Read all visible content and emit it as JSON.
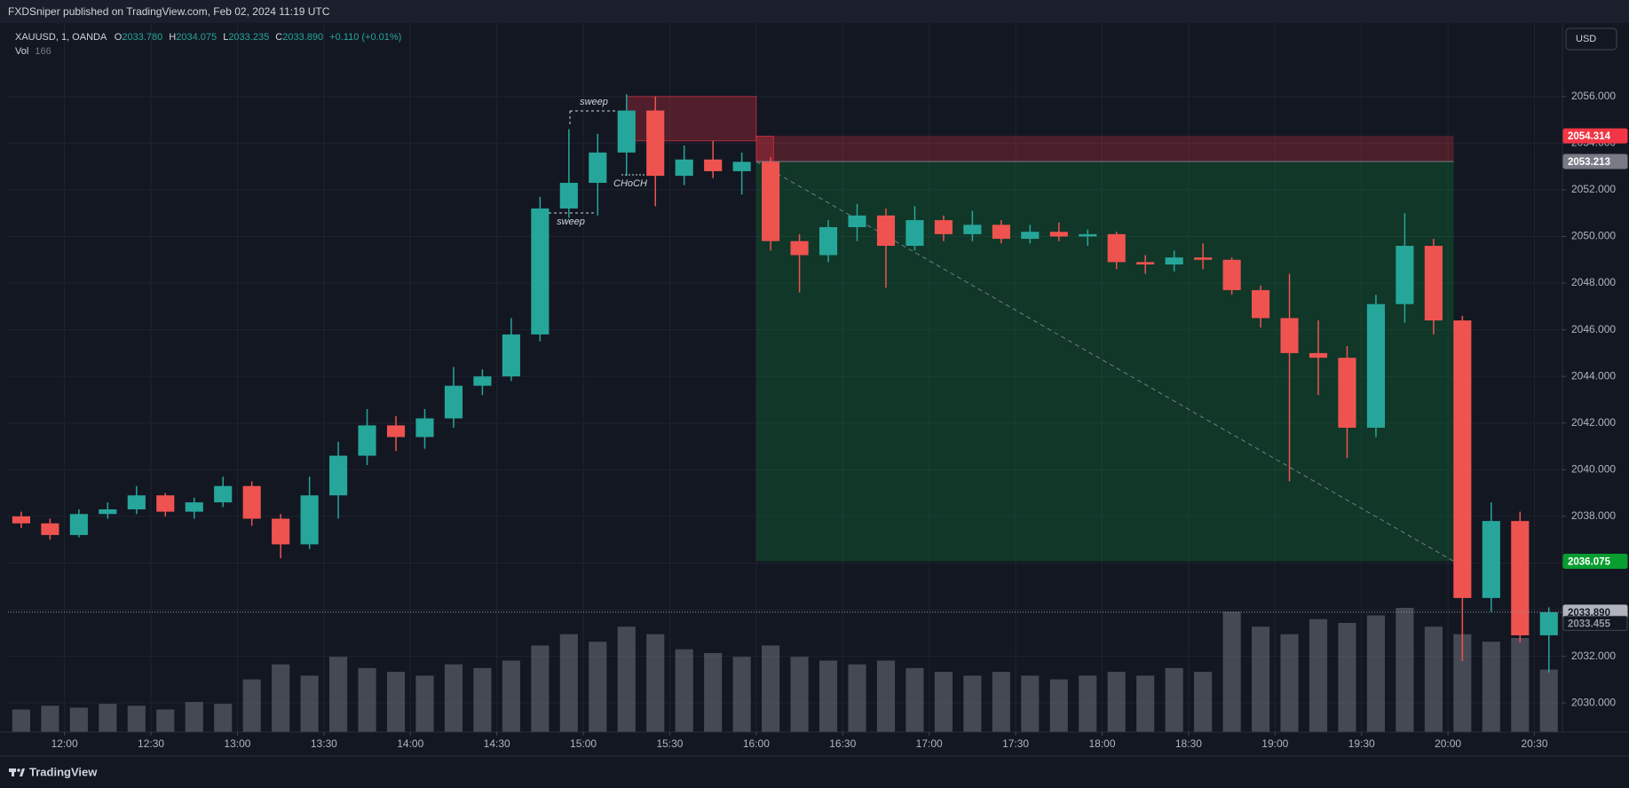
{
  "header": {
    "published": "FXDSniper published on TradingView.com, Feb 02, 2024 11:19 UTC",
    "currency": "USD"
  },
  "legend": {
    "symbol": "XAUUSD, 1, OANDA",
    "ohlc": [
      {
        "key": "O",
        "value": "2033.780"
      },
      {
        "key": "H",
        "value": "2034.075"
      },
      {
        "key": "L",
        "value": "2033.235"
      },
      {
        "key": "C",
        "value": "2033.890"
      }
    ],
    "change": "+0.110 (+0.01%)",
    "volume_label": "Vol"
  },
  "chart_data": {
    "type": "candlestick",
    "x": [
      705,
      715,
      725,
      735,
      745,
      755,
      765,
      775,
      785,
      795,
      805,
      815,
      825,
      835,
      845,
      855,
      865,
      875,
      885,
      895,
      905,
      915,
      925,
      935,
      945,
      955,
      965,
      975,
      985,
      995,
      1005,
      1015,
      1025,
      1035,
      1045,
      1055,
      1065,
      1075,
      1085,
      1095,
      1105,
      1115,
      1125,
      1135,
      1145,
      1155,
      1165,
      1175,
      1185,
      1195,
      1205,
      1215,
      1225,
      1235
    ],
    "open": [
      2038.0,
      2037.7,
      2037.2,
      2038.1,
      2038.3,
      2038.9,
      2038.2,
      2038.6,
      2039.3,
      2037.9,
      2036.8,
      2038.9,
      2040.6,
      2041.9,
      2041.4,
      2042.2,
      2043.6,
      2044.0,
      2045.8,
      2051.2,
      2052.3,
      2053.6,
      2055.4,
      2052.6,
      2053.3,
      2052.8,
      2053.2,
      2049.8,
      2049.2,
      2050.4,
      2050.9,
      2049.6,
      2050.7,
      2050.1,
      2050.5,
      2049.9,
      2050.2,
      2050.0,
      2050.1,
      2048.9,
      2048.8,
      2049.1,
      2049.0,
      2047.7,
      2046.5,
      2045.0,
      2044.8,
      2041.8,
      2047.1,
      2049.6,
      2046.4,
      2034.5,
      2037.8,
      2032.9
    ],
    "high": [
      2038.2,
      2037.9,
      2038.3,
      2038.6,
      2039.3,
      2039.0,
      2038.8,
      2039.7,
      2039.5,
      2038.1,
      2039.7,
      2041.2,
      2042.6,
      2042.3,
      2042.6,
      2044.4,
      2044.3,
      2046.5,
      2051.7,
      2054.6,
      2054.4,
      2056.1,
      2056.0,
      2053.9,
      2054.1,
      2053.6,
      2053.4,
      2050.1,
      2050.7,
      2051.4,
      2051.2,
      2051.3,
      2050.9,
      2051.1,
      2050.7,
      2050.5,
      2050.6,
      2050.3,
      2050.2,
      2049.2,
      2049.4,
      2049.7,
      2049.1,
      2047.9,
      2048.4,
      2046.4,
      2045.3,
      2047.5,
      2051.0,
      2049.9,
      2046.6,
      2038.6,
      2038.2,
      2034.1
    ],
    "low": [
      2037.5,
      2037.0,
      2037.1,
      2037.9,
      2038.1,
      2038.0,
      2037.9,
      2038.4,
      2037.6,
      2036.2,
      2036.6,
      2037.9,
      2040.2,
      2040.8,
      2040.9,
      2041.8,
      2043.2,
      2043.8,
      2045.5,
      2050.8,
      2050.9,
      2052.6,
      2051.3,
      2052.2,
      2052.5,
      2051.8,
      2049.4,
      2047.6,
      2048.9,
      2049.8,
      2047.8,
      2049.4,
      2049.8,
      2049.8,
      2049.7,
      2049.7,
      2049.8,
      2049.6,
      2048.6,
      2048.4,
      2048.5,
      2048.6,
      2047.5,
      2046.1,
      2039.5,
      2043.2,
      2040.5,
      2041.4,
      2046.3,
      2045.8,
      2031.8,
      2033.9,
      2032.6,
      2031.3
    ],
    "close": [
      2037.7,
      2037.2,
      2038.1,
      2038.3,
      2038.9,
      2038.2,
      2038.6,
      2039.3,
      2037.9,
      2036.8,
      2038.9,
      2040.6,
      2041.9,
      2041.4,
      2042.2,
      2043.6,
      2044.0,
      2045.8,
      2051.2,
      2052.3,
      2053.6,
      2055.4,
      2052.6,
      2053.3,
      2052.8,
      2053.2,
      2049.8,
      2049.2,
      2050.4,
      2050.9,
      2049.6,
      2050.7,
      2050.1,
      2050.5,
      2049.9,
      2050.2,
      2050.0,
      2050.1,
      2048.9,
      2048.8,
      2049.1,
      2049.0,
      2047.7,
      2046.5,
      2045.0,
      2044.8,
      2041.8,
      2047.1,
      2049.6,
      2046.4,
      2034.5,
      2037.8,
      2032.9,
      2033.89
    ],
    "volume": [
      60,
      70,
      65,
      75,
      70,
      60,
      80,
      75,
      140,
      180,
      150,
      200,
      170,
      160,
      150,
      180,
      170,
      190,
      230,
      260,
      240,
      280,
      260,
      220,
      210,
      200,
      230,
      200,
      190,
      180,
      190,
      170,
      160,
      150,
      160,
      150,
      140,
      150,
      160,
      150,
      170,
      160,
      320,
      280,
      260,
      300,
      290,
      310,
      330,
      280,
      260,
      240,
      250,
      166
    ],
    "up_color": "#26a69a",
    "down_color": "#ef5350",
    "volume_color": "#787b86",
    "xlim": [
      700.4,
      1239.7
    ],
    "xticks": [
      {
        "value": 720,
        "label": "12:00"
      },
      {
        "value": 750,
        "label": "12:30"
      },
      {
        "value": 780,
        "label": "13:00"
      },
      {
        "value": 810,
        "label": "13:30"
      },
      {
        "value": 840,
        "label": "14:00"
      },
      {
        "value": 870,
        "label": "14:30"
      },
      {
        "value": 900,
        "label": "15:00"
      },
      {
        "value": 930,
        "label": "15:30"
      },
      {
        "value": 960,
        "label": "16:00"
      },
      {
        "value": 990,
        "label": "16:30"
      },
      {
        "value": 1020,
        "label": "17:00"
      },
      {
        "value": 1050,
        "label": "17:30"
      },
      {
        "value": 1080,
        "label": "18:00"
      },
      {
        "value": 1110,
        "label": "18:30"
      },
      {
        "value": 1140,
        "label": "19:00"
      },
      {
        "value": 1170,
        "label": "19:30"
      },
      {
        "value": 1200,
        "label": "20:00"
      },
      {
        "value": 1230,
        "label": "20:30"
      }
    ],
    "ylim": [
      2028.75,
      2059.15
    ],
    "yticks": [
      {
        "value": 2030,
        "label": "2030.000"
      },
      {
        "value": 2032,
        "label": "2032.000"
      },
      {
        "value": 2034,
        "label": "2034.000"
      },
      {
        "value": 2036,
        "label": "2036.000"
      },
      {
        "value": 2038,
        "label": "2038.000"
      },
      {
        "value": 2040,
        "label": "2040.000"
      },
      {
        "value": 2042,
        "label": "2042.000"
      },
      {
        "value": 2044,
        "label": "2044.000"
      },
      {
        "value": 2046,
        "label": "2046.000"
      },
      {
        "value": 2048,
        "label": "2048.000"
      },
      {
        "value": 2050,
        "label": "2050.000"
      },
      {
        "value": 2052,
        "label": "2052.000"
      },
      {
        "value": 2054,
        "label": "2054.000"
      },
      {
        "value": 2056,
        "label": "2056.000"
      }
    ],
    "grid": true,
    "position": {
      "from": 960,
      "to": 1202,
      "stop": 2054.314,
      "entry": 2053.213,
      "target": 2036.075
    },
    "zones": [
      {
        "from": 915,
        "to": 960,
        "low": 2054.1,
        "high": 2056.0
      },
      {
        "from": 960,
        "to": 966,
        "low": 2053.2,
        "high": 2054.3
      }
    ],
    "last_price": {
      "value": 2033.89,
      "label": "2033.890"
    },
    "secondary_price": 2033.455,
    "annotations": [
      "sweep",
      "sweep",
      "CHoCH"
    ]
  },
  "footer": {
    "brand": "TradingView"
  }
}
